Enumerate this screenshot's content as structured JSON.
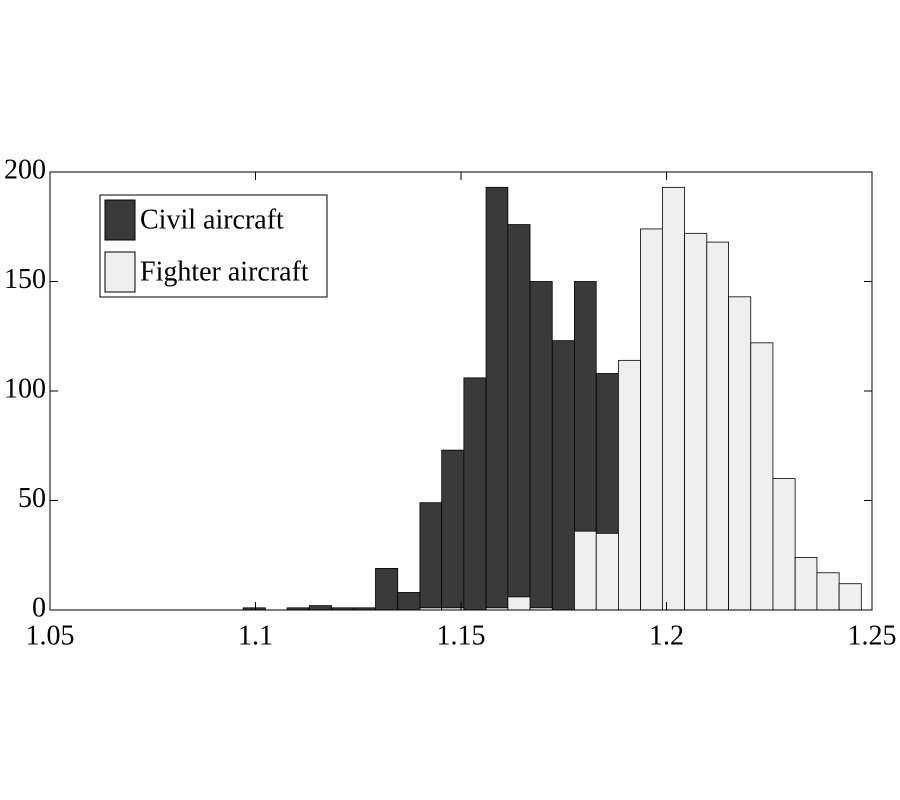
{
  "chart_data": {
    "type": "histogram",
    "bins": [
      1.097,
      1.1024,
      1.1077,
      1.1131,
      1.1185,
      1.1239,
      1.1292,
      1.1346,
      1.14,
      1.1453,
      1.1507,
      1.1561,
      1.1614,
      1.1668,
      1.1722,
      1.1776,
      1.1829,
      1.1883,
      1.1937,
      1.199,
      1.2044,
      1.2098,
      1.2151,
      1.2205,
      1.2259,
      1.2313,
      1.2366,
      1.242,
      1.2474
    ],
    "series": [
      {
        "name": "Civil aircraft",
        "color": "#3a3a3a",
        "values": [
          1,
          0,
          1,
          2,
          1,
          1,
          19,
          8,
          49,
          73,
          106,
          193,
          176,
          150,
          123,
          150,
          108,
          0,
          0,
          0,
          0,
          0,
          0,
          0,
          0,
          0,
          0,
          0
        ]
      },
      {
        "name": "Fighter aircraft",
        "color": "#efefef",
        "values": [
          0,
          0,
          0,
          0,
          0,
          0,
          0,
          0,
          1,
          1,
          0,
          1,
          6,
          1,
          0,
          36,
          35,
          114,
          174,
          193,
          172,
          168,
          143,
          122,
          60,
          24,
          17,
          12
        ]
      }
    ],
    "xlim": [
      1.05,
      1.25
    ],
    "xticks": [
      1.05,
      1.1,
      1.15,
      1.2,
      1.25
    ],
    "ylim": [
      0,
      200
    ],
    "yticks": [
      0,
      50,
      100,
      150,
      200
    ],
    "legend": "upper left"
  }
}
